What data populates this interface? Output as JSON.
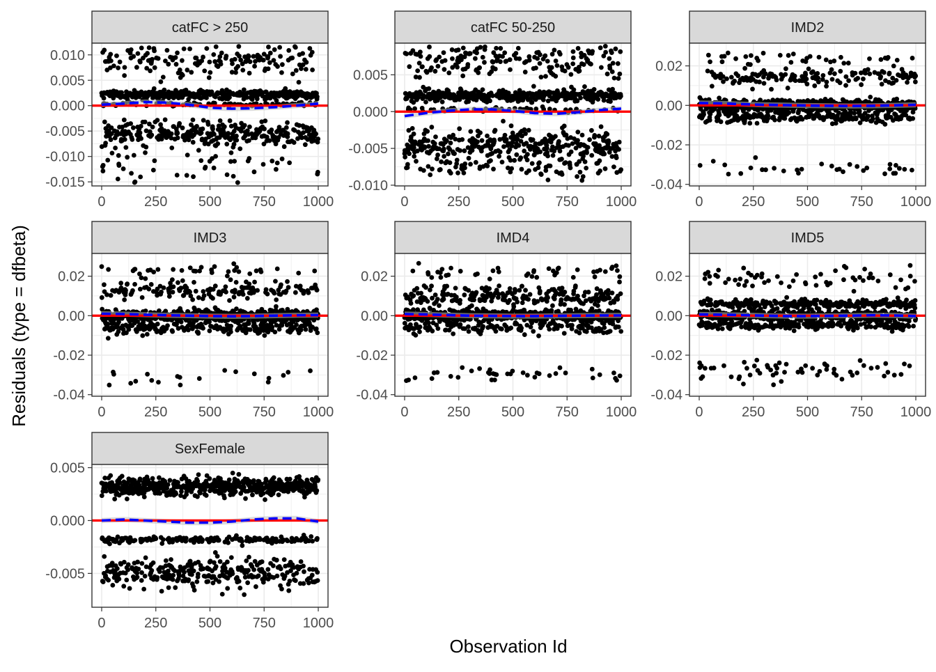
{
  "chart_data": {
    "type": "scatter",
    "xlabel": "Observation Id",
    "ylabel": "Residuals (type = dfbeta)",
    "x_ticks": [
      0,
      250,
      500,
      750,
      1000
    ],
    "x_tick_labels": [
      "0",
      "250",
      "500",
      "750",
      "1000"
    ],
    "xlim": [
      -45,
      1045
    ],
    "n_points_per_panel": 1000,
    "reference_line": {
      "y": 0,
      "color": "#ff0000"
    },
    "colors": {
      "points": "#000000",
      "smooth_line": "#0000ff",
      "smooth_band": "#bdbdbd",
      "strip_fill": "#d9d9d9",
      "panel_border": "#333333",
      "grid": "#ebebeb",
      "reference_line": "#ff0000"
    },
    "panels": [
      {
        "strip": "catFC > 250",
        "ylim": [
          -0.0158,
          0.0123
        ],
        "y_ticks": [
          0.01,
          0.005,
          0.0,
          -0.005,
          -0.01,
          -0.015
        ],
        "y_tick_labels": [
          "0.010",
          "0.005",
          "0.000",
          "-0.005",
          "-0.010",
          "-0.015"
        ],
        "point_bands": [
          {
            "weight": 0.4,
            "center": 0.0022,
            "spread": 0.0008
          },
          {
            "weight": 0.17,
            "center": 0.009,
            "spread": 0.003
          },
          {
            "weight": 0.08,
            "center": 0.0003,
            "spread": 0.0004
          },
          {
            "weight": 0.3,
            "center": -0.0055,
            "spread": 0.0025
          },
          {
            "weight": 0.05,
            "center": -0.0118,
            "spread": 0.004
          }
        ],
        "smooth": {
          "x": [
            0,
            100,
            200,
            300,
            400,
            500,
            600,
            700,
            800,
            900,
            1000
          ],
          "y": [
            0.0002,
            0.0004,
            0.0007,
            0.0006,
            0.0002,
            -0.0004,
            -0.0006,
            -0.0005,
            -0.0003,
            0.0,
            0.0004
          ]
        }
      },
      {
        "strip": "catFC 50-250",
        "ylim": [
          -0.0101,
          0.0093
        ],
        "y_ticks": [
          0.005,
          0.0,
          -0.005,
          -0.01
        ],
        "y_tick_labels": [
          "0.005",
          "0.000",
          "-0.005",
          "-0.010"
        ],
        "point_bands": [
          {
            "weight": 0.4,
            "center": 0.0022,
            "spread": 0.0008
          },
          {
            "weight": 0.17,
            "center": 0.007,
            "spread": 0.0022
          },
          {
            "weight": 0.05,
            "center": 0.0003,
            "spread": 0.0003
          },
          {
            "weight": 0.3,
            "center": -0.0045,
            "spread": 0.002
          },
          {
            "weight": 0.08,
            "center": -0.0075,
            "spread": 0.0015
          }
        ],
        "smooth": {
          "x": [
            0,
            100,
            200,
            300,
            400,
            500,
            600,
            700,
            800,
            900,
            1000
          ],
          "y": [
            -0.0006,
            -0.0002,
            0.0001,
            0.0003,
            0.0003,
            0.0001,
            -0.0002,
            -0.0003,
            -0.0001,
            0.0002,
            0.0004
          ]
        }
      },
      {
        "strip": "IMD2",
        "ylim": [
          -0.0408,
          0.0315
        ],
        "y_ticks": [
          0.02,
          0.0,
          -0.02,
          -0.04
        ],
        "y_tick_labels": [
          "0.02",
          "0.00",
          "-0.02",
          "-0.04"
        ],
        "point_bands": [
          {
            "weight": 0.6,
            "center": 0.0,
            "spread": 0.003
          },
          {
            "weight": 0.2,
            "center": -0.006,
            "spread": 0.003
          },
          {
            "weight": 0.14,
            "center": 0.014,
            "spread": 0.005
          },
          {
            "weight": 0.03,
            "center": 0.024,
            "spread": 0.003
          },
          {
            "weight": 0.03,
            "center": -0.032,
            "spread": 0.004
          }
        ],
        "smooth": {
          "x": [
            0,
            100,
            200,
            300,
            400,
            500,
            600,
            700,
            800,
            900,
            1000
          ],
          "y": [
            0.0012,
            0.001,
            0.0006,
            0.0003,
            0.0001,
            -0.0001,
            -0.0002,
            -0.0003,
            -0.0002,
            0.0,
            0.0003
          ]
        }
      },
      {
        "strip": "IMD3",
        "ylim": [
          -0.0408,
          0.0315
        ],
        "y_ticks": [
          0.02,
          0.0,
          -0.02,
          -0.04
        ],
        "y_tick_labels": [
          "0.02",
          "0.00",
          "-0.02",
          "-0.04"
        ],
        "point_bands": [
          {
            "weight": 0.6,
            "center": 0.0,
            "spread": 0.003
          },
          {
            "weight": 0.2,
            "center": -0.006,
            "spread": 0.003
          },
          {
            "weight": 0.14,
            "center": 0.013,
            "spread": 0.005
          },
          {
            "weight": 0.03,
            "center": 0.023,
            "spread": 0.003
          },
          {
            "weight": 0.03,
            "center": -0.031,
            "spread": 0.004
          }
        ],
        "smooth": {
          "x": [
            0,
            100,
            200,
            300,
            400,
            500,
            600,
            700,
            800,
            900,
            1000
          ],
          "y": [
            0.001,
            0.0008,
            0.0005,
            0.0002,
            0.0,
            -0.0002,
            -0.0003,
            -0.0002,
            0.0,
            0.0002,
            0.0003
          ]
        }
      },
      {
        "strip": "IMD4",
        "ylim": [
          -0.0408,
          0.0315
        ],
        "y_ticks": [
          0.02,
          0.0,
          -0.02,
          -0.04
        ],
        "y_tick_labels": [
          "0.02",
          "0.00",
          "-0.02",
          "-0.04"
        ],
        "point_bands": [
          {
            "weight": 0.55,
            "center": 0.0,
            "spread": 0.003
          },
          {
            "weight": 0.15,
            "center": -0.006,
            "spread": 0.003
          },
          {
            "weight": 0.22,
            "center": 0.01,
            "spread": 0.005
          },
          {
            "weight": 0.04,
            "center": 0.022,
            "spread": 0.004
          },
          {
            "weight": 0.04,
            "center": -0.03,
            "spread": 0.004
          }
        ],
        "smooth": {
          "x": [
            0,
            100,
            200,
            300,
            400,
            500,
            600,
            700,
            800,
            900,
            1000
          ],
          "y": [
            0.0008,
            0.0006,
            0.0003,
            0.0,
            -0.0001,
            -0.0002,
            -0.0002,
            -0.0001,
            0.0,
            0.0001,
            0.0001
          ]
        }
      },
      {
        "strip": "IMD5",
        "ylim": [
          -0.0408,
          0.0315
        ],
        "y_ticks": [
          0.02,
          0.0,
          -0.02,
          -0.04
        ],
        "y_tick_labels": [
          "0.02",
          "0.00",
          "-0.02",
          "-0.04"
        ],
        "point_bands": [
          {
            "weight": 0.45,
            "center": 0.0,
            "spread": 0.003
          },
          {
            "weight": 0.25,
            "center": 0.006,
            "spread": 0.002
          },
          {
            "weight": 0.18,
            "center": -0.005,
            "spread": 0.002
          },
          {
            "weight": 0.06,
            "center": 0.018,
            "spread": 0.006
          },
          {
            "weight": 0.06,
            "center": -0.028,
            "spread": 0.006
          }
        ],
        "smooth": {
          "x": [
            0,
            100,
            200,
            300,
            400,
            500,
            600,
            700,
            800,
            900,
            1000
          ],
          "y": [
            0.0006,
            0.0005,
            0.0003,
            0.0,
            -0.0002,
            -0.0002,
            -0.0001,
            0.0,
            0.0002,
            0.0001,
            -0.0002
          ]
        }
      },
      {
        "strip": "SexFemale",
        "ylim": [
          -0.0082,
          0.0053
        ],
        "y_ticks": [
          0.005,
          0.0,
          -0.005
        ],
        "y_tick_labels": [
          "0.005",
          "0.000",
          "-0.005"
        ],
        "point_bands": [
          {
            "weight": 0.5,
            "center": 0.0032,
            "spread": 0.0009
          },
          {
            "weight": 0.2,
            "center": -0.0018,
            "spread": 0.0003
          },
          {
            "weight": 0.3,
            "center": -0.005,
            "spread": 0.0015
          }
        ],
        "smooth": {
          "x": [
            0,
            100,
            200,
            300,
            400,
            500,
            600,
            700,
            800,
            900,
            1000
          ],
          "y": [
            0.0,
            0.0001,
            0.0,
            -0.0001,
            -0.0002,
            -0.0002,
            -0.0001,
            0.0001,
            0.0002,
            0.0002,
            -0.0001
          ]
        }
      }
    ]
  }
}
